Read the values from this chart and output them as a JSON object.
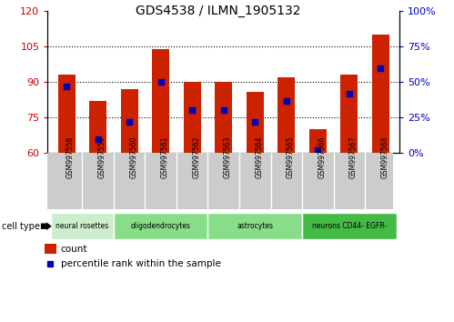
{
  "title": "GDS4538 / ILMN_1905132",
  "samples": [
    "GSM997558",
    "GSM997559",
    "GSM997560",
    "GSM997561",
    "GSM997562",
    "GSM997563",
    "GSM997564",
    "GSM997565",
    "GSM997566",
    "GSM997567",
    "GSM997568"
  ],
  "bar_values": [
    93,
    82,
    87,
    104,
    90,
    90,
    86,
    92,
    70,
    93,
    110
  ],
  "percentile_ranks": [
    47,
    10,
    22,
    50,
    30,
    30,
    22,
    37,
    2,
    42,
    60
  ],
  "ylim_left": [
    60,
    120
  ],
  "ylim_right": [
    0,
    100
  ],
  "yticks_left": [
    60,
    75,
    90,
    105,
    120
  ],
  "yticks_right": [
    0,
    25,
    50,
    75,
    100
  ],
  "bar_color": "#cc2200",
  "marker_color": "#0000bb",
  "cell_type_groups": [
    {
      "label": "neural rosettes",
      "start": 0,
      "end": 2,
      "color": "#cceecc"
    },
    {
      "label": "oligodendrocytes",
      "start": 2,
      "end": 5,
      "color": "#88dd88"
    },
    {
      "label": "astrocytes",
      "start": 5,
      "end": 8,
      "color": "#88dd88"
    },
    {
      "label": "neurons CD44- EGFR-",
      "start": 8,
      "end": 11,
      "color": "#44bb44"
    }
  ],
  "tick_color_left": "#cc0000",
  "tick_color_right": "#0000cc",
  "bar_width": 0.55,
  "label_box_color": "#cccccc",
  "label_box_edgecolor": "#aaaaaa"
}
